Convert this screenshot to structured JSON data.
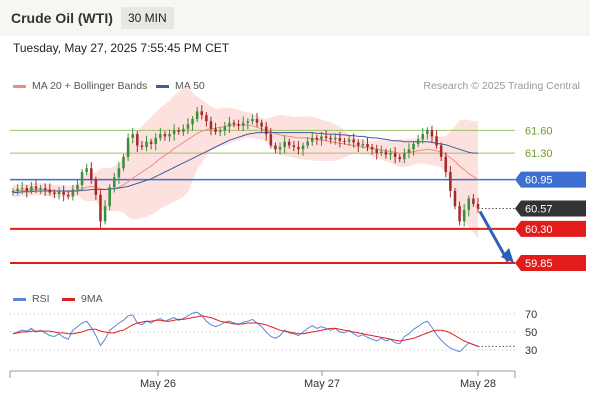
{
  "header": {
    "title": "Crude Oil (WTI)",
    "timeframe": "30 MIN"
  },
  "datetime": "Tuesday, May 27, 2025 7:55:45 PM CET",
  "legend": {
    "ma20": {
      "label": "MA 20 + Bollinger Bands",
      "color": "#f08b84"
    },
    "ma50": {
      "label": "MA 50",
      "color": "#3e5e99"
    },
    "rsi": {
      "label": "RSI",
      "color": "#5b86d6"
    },
    "ma9": {
      "label": "9MA",
      "color": "#e02020"
    }
  },
  "credit": "Research © 2025 Trading Central",
  "chart_data": {
    "type": "candlestick",
    "x_ticks": [
      "May 26",
      "May 27",
      "May 28"
    ],
    "y_range": [
      59.6,
      62.0
    ],
    "levels": [
      {
        "value": 61.6,
        "label": "61.60",
        "kind": "resistance",
        "color": "#9cc26a"
      },
      {
        "value": 61.3,
        "label": "61.30",
        "kind": "resistance",
        "color": "#9cc26a"
      },
      {
        "value": 60.95,
        "label": "60.95",
        "kind": "pivot",
        "color": "#3d6fd1"
      },
      {
        "value": 60.57,
        "label": "60.57",
        "kind": "last",
        "color": "#333333"
      },
      {
        "value": 60.3,
        "label": "60.30",
        "kind": "support",
        "color": "#e21b1b"
      },
      {
        "value": 59.85,
        "label": "59.85",
        "kind": "support",
        "color": "#e21b1b"
      }
    ],
    "closes": [
      60.8,
      60.83,
      60.84,
      60.8,
      60.86,
      60.83,
      60.84,
      60.82,
      60.78,
      60.76,
      60.79,
      60.75,
      60.73,
      60.82,
      60.88,
      61.05,
      61.1,
      60.95,
      60.75,
      60.4,
      60.6,
      60.85,
      60.98,
      61.1,
      61.25,
      61.5,
      61.55,
      61.4,
      61.38,
      61.45,
      61.42,
      61.5,
      61.55,
      61.52,
      61.55,
      61.6,
      61.58,
      61.62,
      61.68,
      61.75,
      61.85,
      61.8,
      61.72,
      61.62,
      61.58,
      61.6,
      61.65,
      61.7,
      61.68,
      61.66,
      61.7,
      61.72,
      61.75,
      61.7,
      61.65,
      61.55,
      61.4,
      61.35,
      61.38,
      61.45,
      61.4,
      61.38,
      61.35,
      61.4,
      61.45,
      61.5,
      61.48,
      61.52,
      61.5,
      61.48,
      61.5,
      61.46,
      61.45,
      61.48,
      61.44,
      61.4,
      61.42,
      61.38,
      61.35,
      61.3,
      61.32,
      61.28,
      61.3,
      61.25,
      61.22,
      61.3,
      61.35,
      61.42,
      61.48,
      61.55,
      61.6,
      61.52,
      61.4,
      61.25,
      61.05,
      60.8,
      60.6,
      60.4,
      60.55,
      60.7,
      60.63,
      60.57
    ],
    "ma20": [
      60.8,
      60.8,
      60.81,
      60.81,
      60.82,
      60.82,
      60.82,
      60.82,
      60.81,
      60.8,
      60.8,
      60.8,
      60.79,
      60.8,
      60.81,
      60.83,
      60.85,
      60.86,
      60.85,
      60.83,
      60.82,
      60.82,
      60.83,
      60.85,
      60.88,
      60.92,
      60.97,
      61.01,
      61.05,
      61.09,
      61.13,
      61.18,
      61.23,
      61.27,
      61.31,
      61.36,
      61.4,
      61.44,
      61.48,
      61.52,
      61.56,
      61.59,
      61.61,
      61.62,
      61.63,
      61.64,
      61.65,
      61.66,
      61.67,
      61.67,
      61.67,
      61.67,
      61.66,
      61.64,
      61.62,
      61.6,
      61.58,
      61.56,
      61.54,
      61.53,
      61.52,
      61.51,
      61.5,
      61.5,
      61.5,
      61.49,
      61.48,
      61.47,
      61.46,
      61.45,
      61.44,
      61.43,
      61.42,
      61.41,
      61.4,
      61.39,
      61.38,
      61.37,
      61.36,
      61.35,
      61.34,
      61.33,
      61.32,
      61.31,
      61.3,
      61.3,
      61.31,
      61.32,
      61.33,
      61.34,
      61.35,
      61.34,
      61.33,
      61.31,
      61.28,
      61.24,
      61.19,
      61.13,
      61.08,
      61.03,
      60.99,
      60.95
    ],
    "ma50": [
      60.78,
      60.78,
      60.79,
      60.79,
      60.79,
      60.8,
      60.8,
      60.8,
      60.8,
      60.8,
      60.8,
      60.8,
      60.8,
      60.8,
      60.8,
      60.81,
      60.81,
      60.82,
      60.82,
      60.82,
      60.82,
      60.83,
      60.83,
      60.84,
      60.85,
      60.86,
      60.88,
      60.9,
      60.92,
      60.94,
      60.96,
      60.99,
      61.02,
      61.05,
      61.08,
      61.11,
      61.14,
      61.17,
      61.2,
      61.23,
      61.26,
      61.29,
      61.32,
      61.35,
      61.38,
      61.41,
      61.44,
      61.47,
      61.49,
      61.51,
      61.53,
      61.55,
      61.56,
      61.57,
      61.57,
      61.57,
      61.57,
      61.57,
      61.57,
      61.57,
      61.57,
      61.57,
      61.57,
      61.57,
      61.57,
      61.57,
      61.56,
      61.56,
      61.55,
      61.55,
      61.55,
      61.54,
      61.54,
      61.53,
      61.53,
      61.52,
      61.52,
      61.51,
      61.5,
      61.5,
      61.49,
      61.48,
      61.47,
      61.46,
      61.46,
      61.45,
      61.45,
      61.45,
      61.45,
      61.45,
      61.45,
      61.44,
      61.43,
      61.42,
      61.41,
      61.39,
      61.37,
      61.35,
      61.33,
      61.31,
      61.3,
      61.3
    ],
    "rsi": {
      "y_ticks": [
        70,
        50,
        30
      ],
      "values": [
        48,
        50,
        52,
        51,
        54,
        50,
        52,
        49,
        46,
        45,
        48,
        44,
        42,
        52,
        56,
        60,
        62,
        55,
        46,
        35,
        42,
        52,
        56,
        60,
        63,
        68,
        69,
        60,
        58,
        62,
        60,
        63,
        65,
        62,
        64,
        66,
        63,
        65,
        68,
        71,
        72,
        68,
        62,
        58,
        56,
        58,
        61,
        62,
        60,
        58,
        61,
        62,
        64,
        60,
        56,
        50,
        45,
        43,
        46,
        52,
        49,
        48,
        46,
        50,
        54,
        57,
        54,
        56,
        54,
        52,
        54,
        50,
        49,
        52,
        48,
        45,
        47,
        44,
        42,
        40,
        43,
        40,
        42,
        38,
        37,
        45,
        48,
        53,
        56,
        60,
        62,
        55,
        47,
        41,
        36,
        32,
        30,
        28,
        33,
        38,
        36,
        34
      ],
      "ma9": [
        48,
        49,
        50,
        50,
        51,
        51,
        51,
        51,
        51,
        50,
        49,
        49,
        48,
        48,
        49,
        50,
        52,
        53,
        53,
        51,
        50,
        49,
        49,
        51,
        52,
        55,
        58,
        60,
        61,
        62,
        62,
        63,
        63,
        62,
        62,
        63,
        64,
        64,
        65,
        66,
        67,
        68,
        67,
        66,
        64,
        62,
        61,
        60,
        59,
        59,
        59,
        60,
        60,
        60,
        59,
        58,
        56,
        54,
        52,
        51,
        50,
        49,
        48,
        48,
        49,
        50,
        51,
        52,
        53,
        54,
        54,
        53,
        52,
        51,
        50,
        49,
        48,
        47,
        46,
        45,
        44,
        43,
        42,
        41,
        40,
        41,
        42,
        43,
        45,
        47,
        49,
        51,
        52,
        52,
        51,
        49,
        46,
        43,
        40,
        38,
        36,
        34
      ]
    }
  }
}
